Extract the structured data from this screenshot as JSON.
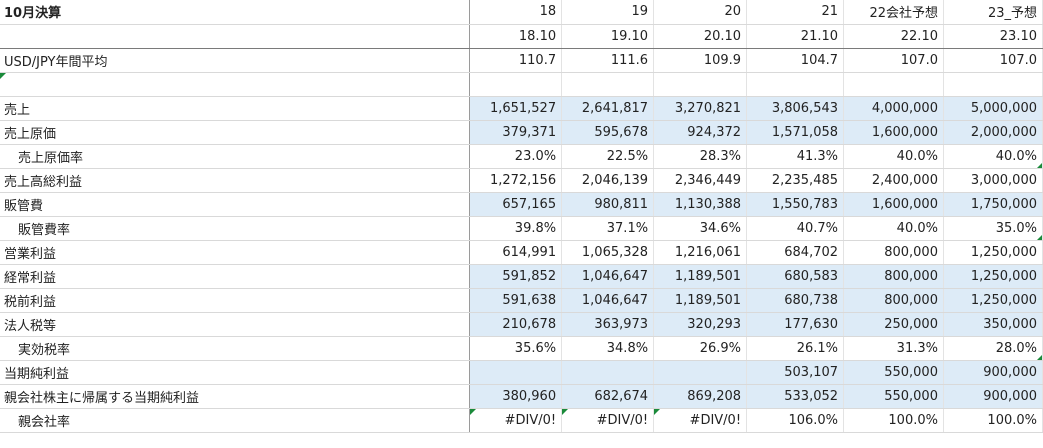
{
  "header_row": [
    "10月決算",
    "18",
    "19",
    "20",
    "21",
    "22会社予想",
    "23_予想"
  ],
  "period_row": [
    "",
    "18.10",
    "19.10",
    "20.10",
    "21.10",
    "22.10",
    "23.10"
  ],
  "fx_row": [
    "USD/JPY年間平均",
    "110.7",
    "111.6",
    "109.9",
    "104.7",
    "107.0",
    "107.0"
  ],
  "rows": [
    {
      "label": "売上",
      "values": [
        "1,651,527",
        "2,641,817",
        "3,270,821",
        "3,806,543",
        "4,000,000",
        "5,000,000"
      ]
    },
    {
      "label": "売上原価",
      "values": [
        "379,371",
        "595,678",
        "924,372",
        "1,571,058",
        "1,600,000",
        "2,000,000"
      ]
    },
    {
      "label": "売上原価率",
      "values": [
        "23.0%",
        "22.5%",
        "28.3%",
        "41.3%",
        "40.0%",
        "40.0%"
      ]
    },
    {
      "label": "売上高総利益",
      "values": [
        "1,272,156",
        "2,046,139",
        "2,346,449",
        "2,235,485",
        "2,400,000",
        "3,000,000"
      ]
    },
    {
      "label": "販管費",
      "values": [
        "657,165",
        "980,811",
        "1,130,388",
        "1,550,783",
        "1,600,000",
        "1,750,000"
      ]
    },
    {
      "label": "販管費率",
      "values": [
        "39.8%",
        "37.1%",
        "34.6%",
        "40.7%",
        "40.0%",
        "35.0%"
      ]
    },
    {
      "label": "営業利益",
      "values": [
        "614,991",
        "1,065,328",
        "1,216,061",
        "684,702",
        "800,000",
        "1,250,000"
      ]
    },
    {
      "label": "経常利益",
      "values": [
        "591,852",
        "1,046,647",
        "1,189,501",
        "680,583",
        "800,000",
        "1,250,000"
      ]
    },
    {
      "label": "税前利益",
      "values": [
        "591,638",
        "1,046,647",
        "1,189,501",
        "680,738",
        "800,000",
        "1,250,000"
      ]
    },
    {
      "label": "法人税等",
      "values": [
        "210,678",
        "363,973",
        "320,293",
        "177,630",
        "250,000",
        "350,000"
      ]
    },
    {
      "label": "実効税率",
      "values": [
        "35.6%",
        "34.8%",
        "26.9%",
        "26.1%",
        "31.3%",
        "28.0%"
      ]
    },
    {
      "label": "当期純利益",
      "values": [
        "",
        "",
        "",
        "503,107",
        "550,000",
        "900,000"
      ]
    },
    {
      "label": "親会社株主に帰属する当期純利益",
      "values": [
        "380,960",
        "682,674",
        "869,208",
        "533,052",
        "550,000",
        "900,000"
      ]
    },
    {
      "label": "親会社率",
      "values": [
        "#DIV/0!",
        "#DIV/0!",
        "#DIV/0!",
        "106.0%",
        "100.0%",
        "100.0%"
      ]
    }
  ]
}
